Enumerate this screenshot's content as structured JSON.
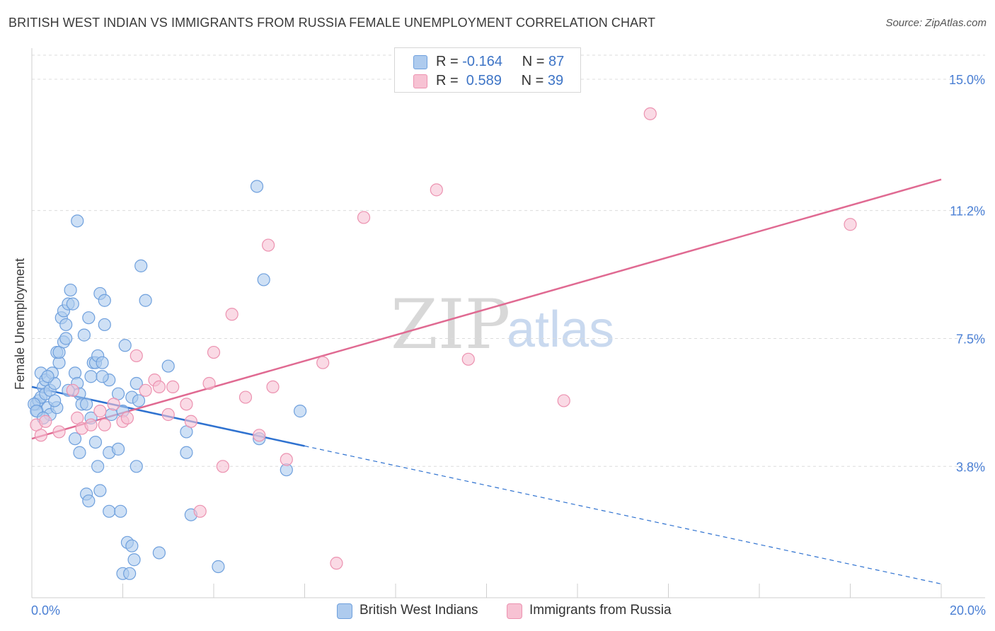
{
  "header": {
    "title": "BRITISH WEST INDIAN VS IMMIGRANTS FROM RUSSIA FEMALE UNEMPLOYMENT CORRELATION CHART",
    "source": "Source: ZipAtlas.com"
  },
  "legend": {
    "rows": [
      {
        "r_label": "R =",
        "r_value": "-0.164",
        "n_label": "N =",
        "n_value": "87"
      },
      {
        "r_label": "R =",
        "r_value": " 0.589",
        "n_label": "N =",
        "n_value": "39"
      }
    ]
  },
  "bottom_legend": {
    "series1": "British West Indians",
    "series2": "Immigrants from Russia"
  },
  "watermark": {
    "part1": "ZIP",
    "part2": "atlas"
  },
  "colors": {
    "blue_fill": "#aecbee",
    "blue_stroke": "#6fa0dd",
    "blue_line": "#2f72d0",
    "pink_fill": "#f7c2d3",
    "pink_stroke": "#ec92b0",
    "pink_line": "#e06a92",
    "grid": "#dcdcdc",
    "axis_text": "#4a7fd4"
  },
  "chart_data": {
    "type": "scatter",
    "title": "BRITISH WEST INDIAN VS IMMIGRANTS FROM RUSSIA FEMALE UNEMPLOYMENT CORRELATION CHART",
    "xlabel": "",
    "ylabel": "Female Unemployment",
    "xlim": [
      0,
      20
    ],
    "ylim": [
      0,
      15.9
    ],
    "x_tick_labels": [
      "0.0%",
      "20.0%"
    ],
    "y_ticks": [
      3.8,
      7.5,
      11.2,
      15.0
    ],
    "y_tick_labels": [
      "3.8%",
      "7.5%",
      "11.2%",
      "15.0%"
    ],
    "series": [
      {
        "name": "British West Indians",
        "R": -0.164,
        "N": 87,
        "trend": {
          "x0": 0,
          "y0": 6.1,
          "x_solid_end": 6.0,
          "x1": 20,
          "y1": 0.4
        },
        "points": [
          [
            0.1,
            5.6
          ],
          [
            0.15,
            5.7
          ],
          [
            0.12,
            5.4
          ],
          [
            0.2,
            5.8
          ],
          [
            0.25,
            6.1
          ],
          [
            0.3,
            5.9
          ],
          [
            0.35,
            5.5
          ],
          [
            0.4,
            5.3
          ],
          [
            0.2,
            6.5
          ],
          [
            0.3,
            6.3
          ],
          [
            0.4,
            6.0
          ],
          [
            0.45,
            6.5
          ],
          [
            0.5,
            6.2
          ],
          [
            0.55,
            5.5
          ],
          [
            0.6,
            6.8
          ],
          [
            0.55,
            7.1
          ],
          [
            0.6,
            7.1
          ],
          [
            0.7,
            7.4
          ],
          [
            0.75,
            7.5
          ],
          [
            0.65,
            8.1
          ],
          [
            0.7,
            8.3
          ],
          [
            0.75,
            7.9
          ],
          [
            0.8,
            8.5
          ],
          [
            0.85,
            8.9
          ],
          [
            0.9,
            8.5
          ],
          [
            0.95,
            6.5
          ],
          [
            1.0,
            6.2
          ],
          [
            1.05,
            5.9
          ],
          [
            1.1,
            5.6
          ],
          [
            1.15,
            7.6
          ],
          [
            1.2,
            5.6
          ],
          [
            1.25,
            8.1
          ],
          [
            1.3,
            6.4
          ],
          [
            1.35,
            6.8
          ],
          [
            1.4,
            6.8
          ],
          [
            1.45,
            7.0
          ],
          [
            1.5,
            8.8
          ],
          [
            1.55,
            6.8
          ],
          [
            1.6,
            7.9
          ],
          [
            1.6,
            8.6
          ],
          [
            1.7,
            6.3
          ],
          [
            1.75,
            5.3
          ],
          [
            0.95,
            4.6
          ],
          [
            1.05,
            4.2
          ],
          [
            1.2,
            3.0
          ],
          [
            1.25,
            2.8
          ],
          [
            1.4,
            4.5
          ],
          [
            1.45,
            3.8
          ],
          [
            1.5,
            3.1
          ],
          [
            1.7,
            4.2
          ],
          [
            1.7,
            2.5
          ],
          [
            1.9,
            4.3
          ],
          [
            1.95,
            2.5
          ],
          [
            2.0,
            0.7
          ],
          [
            2.1,
            1.6
          ],
          [
            2.15,
            0.7
          ],
          [
            2.2,
            1.5
          ],
          [
            2.25,
            1.1
          ],
          [
            2.05,
            7.3
          ],
          [
            2.2,
            5.8
          ],
          [
            2.3,
            6.2
          ],
          [
            2.35,
            5.7
          ],
          [
            2.4,
            9.6
          ],
          [
            2.5,
            8.6
          ],
          [
            2.3,
            3.8
          ],
          [
            2.8,
            1.3
          ],
          [
            3.0,
            6.7
          ],
          [
            3.4,
            4.8
          ],
          [
            3.4,
            4.2
          ],
          [
            3.5,
            2.4
          ],
          [
            4.1,
            0.9
          ],
          [
            4.95,
            11.9
          ],
          [
            5.1,
            9.2
          ],
          [
            5.0,
            4.6
          ],
          [
            5.6,
            3.7
          ],
          [
            5.9,
            5.4
          ],
          [
            1.0,
            10.9
          ],
          [
            0.05,
            5.6
          ],
          [
            0.1,
            5.4
          ],
          [
            1.3,
            5.2
          ],
          [
            2.0,
            5.4
          ],
          [
            0.5,
            5.7
          ],
          [
            0.8,
            6.0
          ],
          [
            1.9,
            5.9
          ],
          [
            0.35,
            6.4
          ],
          [
            1.55,
            6.4
          ],
          [
            0.25,
            5.2
          ]
        ]
      },
      {
        "name": "Immigrants from Russia",
        "R": 0.589,
        "N": 39,
        "trend": {
          "x0": 0,
          "y0": 4.6,
          "x1": 20,
          "y1": 12.1
        },
        "points": [
          [
            0.1,
            5.0
          ],
          [
            0.2,
            4.7
          ],
          [
            0.3,
            5.1
          ],
          [
            0.6,
            4.8
          ],
          [
            0.9,
            6.0
          ],
          [
            1.0,
            5.2
          ],
          [
            1.1,
            4.9
          ],
          [
            1.3,
            5.0
          ],
          [
            1.5,
            5.4
          ],
          [
            1.6,
            5.0
          ],
          [
            1.8,
            5.6
          ],
          [
            2.0,
            5.1
          ],
          [
            2.1,
            5.2
          ],
          [
            2.3,
            7.0
          ],
          [
            2.5,
            6.0
          ],
          [
            2.7,
            6.3
          ],
          [
            2.8,
            6.1
          ],
          [
            3.0,
            5.3
          ],
          [
            3.1,
            6.1
          ],
          [
            3.4,
            5.6
          ],
          [
            3.5,
            5.1
          ],
          [
            3.7,
            2.5
          ],
          [
            3.9,
            6.2
          ],
          [
            4.0,
            7.1
          ],
          [
            4.2,
            3.8
          ],
          [
            4.4,
            8.2
          ],
          [
            4.7,
            5.8
          ],
          [
            5.0,
            4.7
          ],
          [
            5.2,
            10.2
          ],
          [
            5.3,
            6.1
          ],
          [
            5.6,
            4.0
          ],
          [
            6.4,
            6.8
          ],
          [
            6.7,
            1.0
          ],
          [
            7.3,
            11.0
          ],
          [
            8.9,
            11.8
          ],
          [
            9.6,
            6.9
          ],
          [
            11.7,
            5.7
          ],
          [
            13.6,
            14.0
          ],
          [
            18.0,
            10.8
          ]
        ]
      }
    ]
  }
}
